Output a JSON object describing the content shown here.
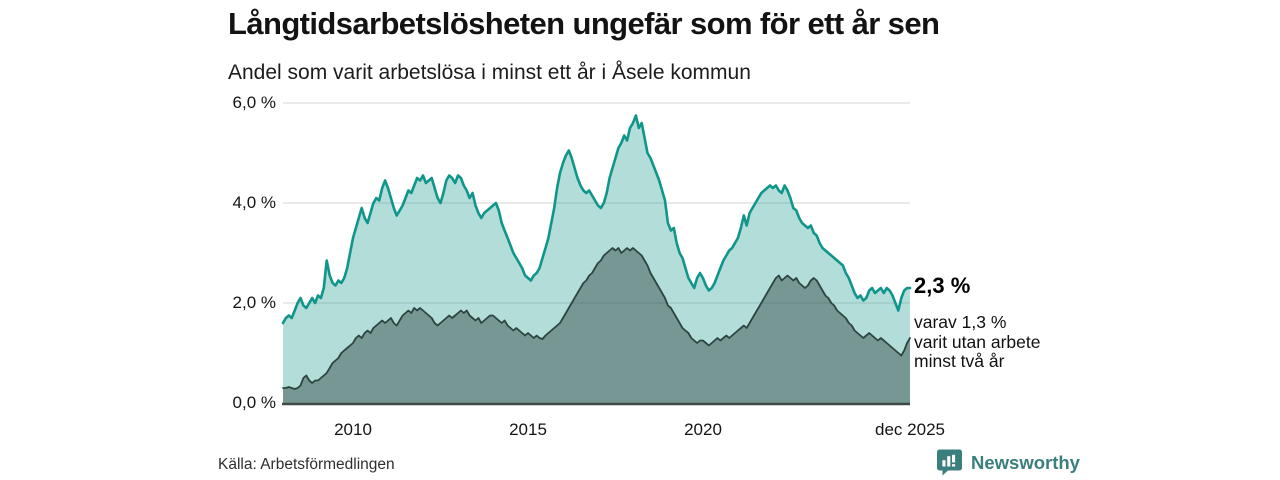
{
  "header": {
    "title": "Långtidsarbetslösheten ungefär som för ett år sen",
    "subtitle": "Andel som varit arbetslösa i minst ett år i Åsele kommun"
  },
  "chart_data": {
    "type": "area",
    "title": "Långtidsarbetslösheten ungefär som för ett år sen",
    "subtitle": "Andel som varit arbetslösa i minst ett år i Åsele kommun",
    "unit": "%",
    "ylim": [
      0,
      6.0
    ],
    "grid": "horizontal",
    "x_domain": {
      "start": "2008-01",
      "end": "2025-12",
      "end_label": "dec 2025"
    },
    "x_ticks": [
      {
        "label": "2010",
        "year": 2010
      },
      {
        "label": "2015",
        "year": 2015
      },
      {
        "label": "2020",
        "year": 2020
      },
      {
        "label": "dec 2025",
        "year": 2025.92
      }
    ],
    "y_ticks": [
      {
        "label": "6,0 %",
        "value": 6
      },
      {
        "label": "4,0 %",
        "value": 4
      },
      {
        "label": "2,0 %",
        "value": 2
      },
      {
        "label": "0,0 %",
        "value": 0
      }
    ],
    "series": [
      {
        "id": "arbetslosa-minst-ett-ar",
        "name": "minst ett år",
        "color_line": "#10958b",
        "color_fill": "rgba(20,150,135,0.32)",
        "line_width": 2.6,
        "end_value_label": "2,3 %",
        "monthly": true,
        "values": [
          1.6,
          1.7,
          1.75,
          1.7,
          1.85,
          2.0,
          2.1,
          1.95,
          1.9,
          2.0,
          2.1,
          2.0,
          2.15,
          2.1,
          2.3,
          2.85,
          2.55,
          2.4,
          2.35,
          2.45,
          2.4,
          2.5,
          2.7,
          3.0,
          3.3,
          3.5,
          3.7,
          3.9,
          3.7,
          3.6,
          3.8,
          4.0,
          4.1,
          4.05,
          4.3,
          4.45,
          4.3,
          4.1,
          3.9,
          3.75,
          3.85,
          3.95,
          4.1,
          4.25,
          4.2,
          4.35,
          4.5,
          4.45,
          4.55,
          4.4,
          4.45,
          4.5,
          4.3,
          4.1,
          4.0,
          4.2,
          4.45,
          4.55,
          4.5,
          4.4,
          4.55,
          4.5,
          4.35,
          4.25,
          4.1,
          4.2,
          3.95,
          3.8,
          3.7,
          3.8,
          3.85,
          3.9,
          3.95,
          4.0,
          3.85,
          3.6,
          3.45,
          3.3,
          3.15,
          3.0,
          2.9,
          2.8,
          2.7,
          2.55,
          2.5,
          2.45,
          2.55,
          2.6,
          2.7,
          2.9,
          3.1,
          3.3,
          3.6,
          3.9,
          4.3,
          4.6,
          4.8,
          4.95,
          5.05,
          4.9,
          4.7,
          4.5,
          4.35,
          4.25,
          4.2,
          4.25,
          4.15,
          4.05,
          3.95,
          3.9,
          4.0,
          4.2,
          4.5,
          4.7,
          4.9,
          5.1,
          5.2,
          5.35,
          5.25,
          5.5,
          5.6,
          5.75,
          5.5,
          5.6,
          5.3,
          5.0,
          4.9,
          4.75,
          4.6,
          4.45,
          4.25,
          4.05,
          3.6,
          3.45,
          3.5,
          3.2,
          3.0,
          2.9,
          2.7,
          2.5,
          2.4,
          2.3,
          2.5,
          2.6,
          2.5,
          2.35,
          2.25,
          2.3,
          2.4,
          2.55,
          2.7,
          2.85,
          2.95,
          3.05,
          3.1,
          3.2,
          3.3,
          3.5,
          3.75,
          3.55,
          3.8,
          3.9,
          4.0,
          4.1,
          4.2,
          4.25,
          4.3,
          4.35,
          4.3,
          4.35,
          4.25,
          4.2,
          4.35,
          4.25,
          4.1,
          3.9,
          3.85,
          3.7,
          3.6,
          3.55,
          3.5,
          3.55,
          3.4,
          3.35,
          3.2,
          3.1,
          3.05,
          3.0,
          2.95,
          2.9,
          2.85,
          2.8,
          2.75,
          2.6,
          2.5,
          2.35,
          2.2,
          2.1,
          2.15,
          2.05,
          2.1,
          2.25,
          2.3,
          2.2,
          2.25,
          2.3,
          2.2,
          2.3,
          2.25,
          2.15,
          2.0,
          1.85,
          2.1,
          2.25,
          2.3,
          2.3
        ]
      },
      {
        "id": "arbetslosa-minst-tva-ar",
        "name": "minst två år",
        "color_line": "#2c4540",
        "color_fill": "rgba(33,56,52,0.42)",
        "line_width": 1.8,
        "end_value_label": "1,3 %",
        "monthly": true,
        "values": [
          0.3,
          0.3,
          0.32,
          0.3,
          0.28,
          0.3,
          0.35,
          0.5,
          0.55,
          0.45,
          0.4,
          0.45,
          0.45,
          0.5,
          0.55,
          0.6,
          0.7,
          0.8,
          0.85,
          0.9,
          1.0,
          1.05,
          1.1,
          1.15,
          1.2,
          1.3,
          1.35,
          1.3,
          1.4,
          1.45,
          1.4,
          1.5,
          1.55,
          1.6,
          1.65,
          1.6,
          1.65,
          1.7,
          1.6,
          1.55,
          1.65,
          1.75,
          1.8,
          1.85,
          1.8,
          1.9,
          1.85,
          1.9,
          1.85,
          1.8,
          1.75,
          1.7,
          1.6,
          1.55,
          1.6,
          1.65,
          1.7,
          1.75,
          1.7,
          1.75,
          1.8,
          1.85,
          1.8,
          1.85,
          1.75,
          1.7,
          1.65,
          1.7,
          1.6,
          1.65,
          1.7,
          1.75,
          1.75,
          1.7,
          1.65,
          1.6,
          1.65,
          1.55,
          1.5,
          1.45,
          1.5,
          1.45,
          1.4,
          1.35,
          1.4,
          1.35,
          1.3,
          1.35,
          1.3,
          1.28,
          1.35,
          1.4,
          1.45,
          1.5,
          1.55,
          1.6,
          1.7,
          1.8,
          1.9,
          2.0,
          2.1,
          2.2,
          2.3,
          2.4,
          2.45,
          2.55,
          2.6,
          2.7,
          2.8,
          2.85,
          2.95,
          3.0,
          3.05,
          3.1,
          3.05,
          3.1,
          3.0,
          3.05,
          3.1,
          3.05,
          3.1,
          3.05,
          3.0,
          2.95,
          2.85,
          2.75,
          2.6,
          2.5,
          2.4,
          2.3,
          2.2,
          2.1,
          1.95,
          1.9,
          1.8,
          1.7,
          1.6,
          1.5,
          1.45,
          1.4,
          1.3,
          1.25,
          1.2,
          1.25,
          1.25,
          1.2,
          1.15,
          1.2,
          1.25,
          1.3,
          1.25,
          1.3,
          1.35,
          1.3,
          1.35,
          1.4,
          1.45,
          1.5,
          1.55,
          1.5,
          1.6,
          1.7,
          1.8,
          1.9,
          2.0,
          2.1,
          2.2,
          2.3,
          2.4,
          2.5,
          2.55,
          2.45,
          2.5,
          2.55,
          2.5,
          2.45,
          2.5,
          2.4,
          2.35,
          2.3,
          2.35,
          2.45,
          2.5,
          2.45,
          2.35,
          2.25,
          2.15,
          2.1,
          2.0,
          1.95,
          1.85,
          1.8,
          1.75,
          1.7,
          1.6,
          1.55,
          1.45,
          1.4,
          1.35,
          1.3,
          1.35,
          1.4,
          1.35,
          1.3,
          1.25,
          1.3,
          1.25,
          1.2,
          1.15,
          1.1,
          1.05,
          1.0,
          0.95,
          1.05,
          1.2,
          1.3
        ]
      }
    ],
    "annotation": {
      "value": "2,3 %",
      "detail_lines": [
        "varav 1,3 %",
        "varit utan arbete",
        "minst två år"
      ]
    },
    "legend_position": "none"
  },
  "footer": {
    "source": "Källa: Arbetsförmedlingen",
    "brand": "Newsworthy"
  },
  "colors": {
    "gridline": "#d6d6d6",
    "axis": "#3f4a47",
    "series1_line": "#10958b",
    "series1_fill": "rgba(20,150,135,0.32)",
    "series2_line": "#2c4540",
    "series2_fill": "rgba(33,56,52,0.42)",
    "brand_teal": "#3a7e7e"
  }
}
